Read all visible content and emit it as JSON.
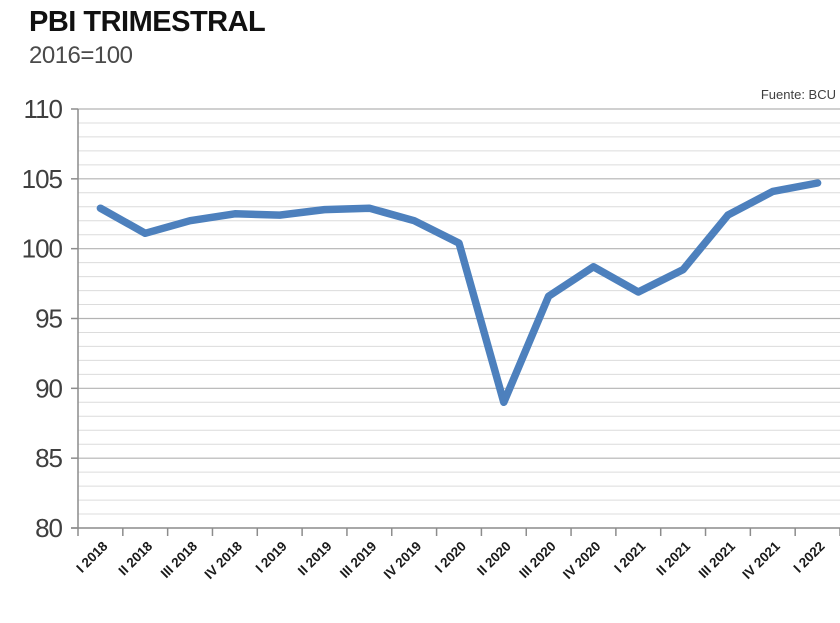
{
  "page": {
    "title": "PBI TRIMESTRAL",
    "subtitle": "2016=100",
    "source": "Fuente: BCU"
  },
  "chart_data": {
    "type": "line",
    "title": "PBI TRIMESTRAL",
    "subtitle": "2016=100",
    "source_note": "Fuente: BCU",
    "xlabel": "",
    "ylabel": "",
    "categories": [
      "I 2018",
      "II 2018",
      "III 2018",
      "IV 2018",
      "I 2019",
      "II 2019",
      "III 2019",
      "IV 2019",
      "I 2020",
      "II 2020",
      "III 2020",
      "IV 2020",
      "I 2021",
      "II 2021",
      "III 2021",
      "IV 2021",
      "I 2022"
    ],
    "values": [
      102.9,
      101.1,
      102.0,
      102.5,
      102.4,
      102.8,
      102.9,
      102.0,
      100.4,
      89.0,
      96.6,
      98.7,
      96.9,
      98.5,
      102.4,
      104.1,
      104.7
    ],
    "ylim": [
      80,
      110
    ],
    "y_ticks": [
      80,
      85,
      90,
      95,
      100,
      105,
      110
    ],
    "y_minor_unit": 1,
    "x_label_rotation": -45,
    "legend": "none",
    "grid": "horizontal major and minor gridlines",
    "line_color": "#4d80bd",
    "axis_color": "#8c8c8c",
    "major_grid_color": "#b3b3b3",
    "minor_grid_color": "#dcdcdc",
    "tick_label_color": "#3f3f3f",
    "x_label_color": "#1a1a1a"
  }
}
